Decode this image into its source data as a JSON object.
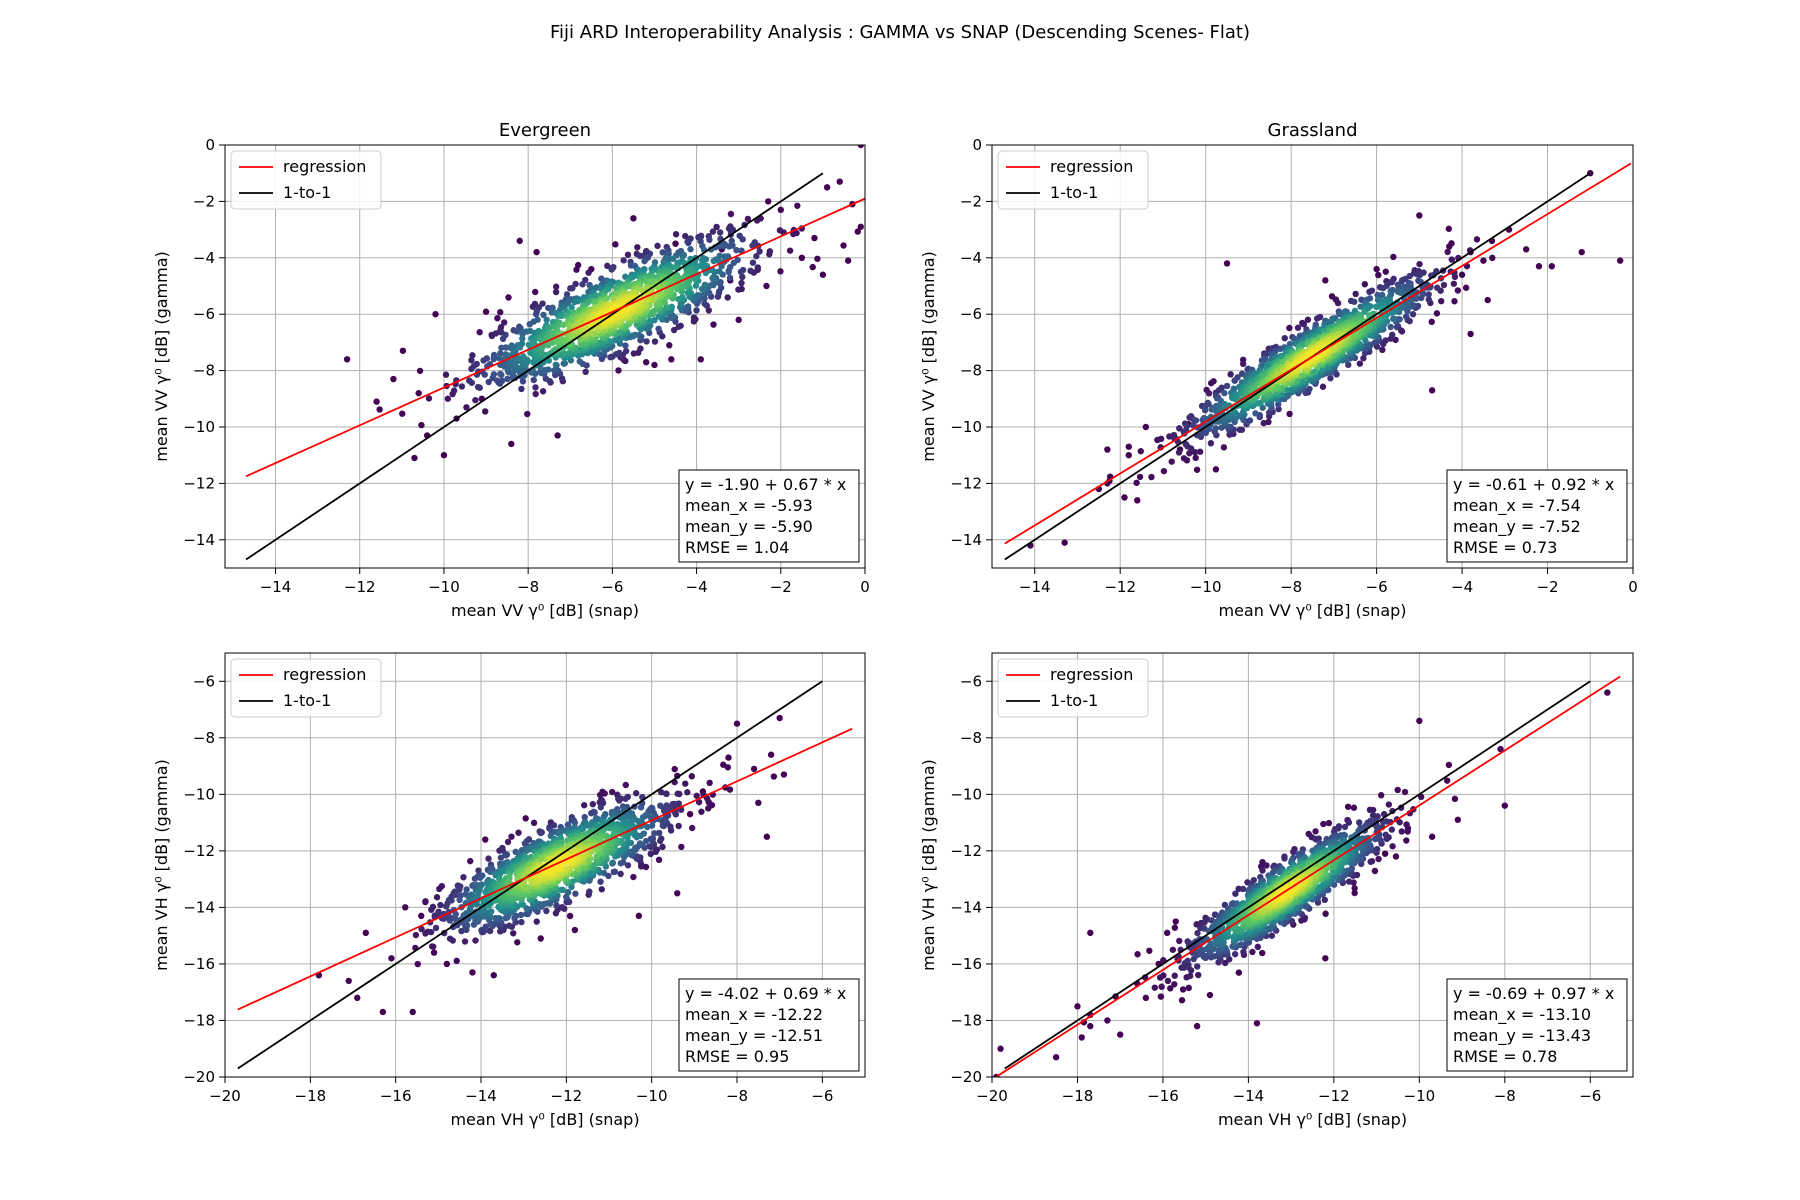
{
  "suptitle": "Fiji ARD Interoperability Analysis : GAMMA vs SNAP (Descending Scenes- Flat)",
  "colors": {
    "regression": "#ff0000",
    "one_to_one": "#000000",
    "grid": "#b0b0b0",
    "density": [
      "#440154",
      "#3b528b",
      "#21918c",
      "#5ec962",
      "#fde725"
    ]
  },
  "chart_data": [
    {
      "type": "scatter",
      "title": "Evergreen",
      "xlabel": "mean VV γ⁰ [dB] (snap)",
      "ylabel": "mean VV γ⁰ [dB] (gamma)",
      "xlim": [
        -15.2,
        0
      ],
      "ylim": [
        -15,
        0
      ],
      "xticks": [
        -14,
        -12,
        -10,
        -8,
        -6,
        -4,
        -2,
        0
      ],
      "yticks": [
        -14,
        -12,
        -10,
        -8,
        -6,
        -4,
        -2,
        0
      ],
      "grid": true,
      "legend": {
        "location": "upper-left",
        "entries": [
          "regression",
          "1-to-1"
        ]
      },
      "regression": {
        "intercept": -1.9,
        "slope": 0.67,
        "x_range": [
          -14.7,
          0
        ]
      },
      "one_to_one": {
        "x_range": [
          -14.7,
          -1.0
        ]
      },
      "cloud": {
        "center": [
          -5.93,
          -5.9
        ],
        "sx": 1.6,
        "slope": 0.67,
        "resid": 0.75
      },
      "stats": [
        "y = -1.90 + 0.67 * x",
        "mean_x = -5.93",
        "mean_y = -5.90",
        "RMSE = 1.04"
      ],
      "outliers": [
        [
          -12.3,
          -7.6
        ],
        [
          -11.2,
          -8.3
        ],
        [
          -11.6,
          -9.1
        ],
        [
          -10.2,
          -6.0
        ],
        [
          -10.7,
          -11.1
        ],
        [
          -10.0,
          -11.0
        ],
        [
          -10.4,
          -10.3
        ],
        [
          -8.4,
          -10.6
        ],
        [
          -7.3,
          -10.3
        ],
        [
          -8.2,
          -3.4
        ],
        [
          -0.1,
          -2.9
        ],
        [
          -0.6,
          -1.3
        ],
        [
          -0.9,
          -1.5
        ],
        [
          -0.4,
          -4.1
        ],
        [
          -2.0,
          -2.3
        ],
        [
          -1.2,
          -3.3
        ],
        [
          -1.5,
          -4.0
        ],
        [
          -3.9,
          -7.6
        ],
        [
          -3.0,
          -6.2
        ],
        [
          -4.6,
          -7.6
        ],
        [
          -5.5,
          -2.6
        ],
        [
          -9.7,
          -9.7
        ],
        [
          -10.6,
          -8.8
        ],
        [
          -9.1,
          -9.0
        ],
        [
          -0.3,
          -2.1
        ],
        [
          -0.1,
          0.0
        ],
        [
          -2.3,
          -2.0
        ],
        [
          -3.2,
          -4.8
        ],
        [
          -1.0,
          -4.6
        ],
        [
          -7.8,
          -3.8
        ],
        [
          -6.5,
          -4.4
        ],
        [
          -3.4,
          -3.7
        ],
        [
          -5.0,
          -7.8
        ],
        [
          -4.5,
          -3.5
        ]
      ]
    },
    {
      "type": "scatter",
      "title": "Grassland",
      "xlabel": "mean VV γ⁰ [dB] (snap)",
      "ylabel": "mean VV γ⁰ [dB] (gamma)",
      "xlim": [
        -15,
        0
      ],
      "ylim": [
        -15,
        0
      ],
      "xticks": [
        -14,
        -12,
        -10,
        -8,
        -6,
        -4,
        -2,
        0
      ],
      "yticks": [
        -14,
        -12,
        -10,
        -8,
        -6,
        -4,
        -2,
        0
      ],
      "grid": true,
      "legend": {
        "location": "upper-left",
        "entries": [
          "regression",
          "1-to-1"
        ]
      },
      "regression": {
        "intercept": -0.61,
        "slope": 0.92,
        "x_range": [
          -14.7,
          -0.05
        ]
      },
      "one_to_one": {
        "x_range": [
          -14.7,
          -1.0
        ]
      },
      "cloud": {
        "center": [
          -7.54,
          -7.52
        ],
        "sx": 1.4,
        "slope": 0.92,
        "resid": 0.55
      },
      "stats": [
        "y = -0.61 + 0.92 * x",
        "mean_x = -7.54",
        "mean_y = -7.52",
        "RMSE = 0.73"
      ],
      "outliers": [
        [
          -14.1,
          -14.2
        ],
        [
          -13.3,
          -14.1
        ],
        [
          -12.3,
          -12.0
        ],
        [
          -12.5,
          -12.2
        ],
        [
          -11.9,
          -12.5
        ],
        [
          -11.6,
          -12.6
        ],
        [
          -12.3,
          -10.8
        ],
        [
          -11.8,
          -11.0
        ],
        [
          -10.6,
          -10.8
        ],
        [
          -11.4,
          -10.0
        ],
        [
          -10.4,
          -9.9
        ],
        [
          -0.3,
          -4.1
        ],
        [
          -1.0,
          -1.0
        ],
        [
          -1.2,
          -3.8
        ],
        [
          -1.9,
          -4.3
        ],
        [
          -2.2,
          -4.3
        ],
        [
          -3.8,
          -6.7
        ],
        [
          -3.4,
          -5.5
        ],
        [
          -3.5,
          -4.1
        ],
        [
          -4.0,
          -4.6
        ],
        [
          -4.3,
          -3.6
        ],
        [
          -2.9,
          -3.0
        ],
        [
          -3.3,
          -3.4
        ],
        [
          -5.0,
          -2.5
        ],
        [
          -4.7,
          -8.7
        ],
        [
          -9.5,
          -4.2
        ],
        [
          -7.2,
          -4.8
        ],
        [
          -6.0,
          -4.4
        ],
        [
          -2.5,
          -3.7
        ],
        [
          -3.8,
          -3.8
        ]
      ]
    },
    {
      "type": "scatter",
      "title": "",
      "xlabel": "mean VH γ⁰ [dB] (snap)",
      "ylabel": "mean VH γ⁰ [dB] (gamma)",
      "xlim": [
        -20,
        -5
      ],
      "ylim": [
        -20,
        -5
      ],
      "xticks": [
        -20,
        -18,
        -16,
        -14,
        -12,
        -10,
        -8,
        -6
      ],
      "yticks": [
        -20,
        -18,
        -16,
        -14,
        -12,
        -10,
        -8,
        -6
      ],
      "grid": true,
      "legend": {
        "location": "upper-left",
        "entries": [
          "regression",
          "1-to-1"
        ]
      },
      "regression": {
        "intercept": -4.02,
        "slope": 0.69,
        "x_range": [
          -19.7,
          -5.3
        ]
      },
      "one_to_one": {
        "x_range": [
          -19.7,
          -6.0
        ]
      },
      "cloud": {
        "center": [
          -12.22,
          -12.51
        ],
        "sx": 1.3,
        "slope": 0.69,
        "resid": 0.7
      },
      "stats": [
        "y = -4.02 + 0.69 * x",
        "mean_x = -12.22",
        "mean_y = -12.51",
        "RMSE = 0.95"
      ],
      "outliers": [
        [
          -17.8,
          -16.4
        ],
        [
          -17.1,
          -16.6
        ],
        [
          -16.9,
          -17.2
        ],
        [
          -16.3,
          -17.7
        ],
        [
          -15.6,
          -17.7
        ],
        [
          -16.7,
          -14.9
        ],
        [
          -16.1,
          -15.8
        ],
        [
          -15.4,
          -14.3
        ],
        [
          -14.8,
          -16.0
        ],
        [
          -15.1,
          -15.6
        ],
        [
          -14.2,
          -16.3
        ],
        [
          -13.7,
          -16.4
        ],
        [
          -12.6,
          -15.1
        ],
        [
          -11.8,
          -14.8
        ],
        [
          -7.2,
          -8.6
        ],
        [
          -7.6,
          -9.1
        ],
        [
          -6.9,
          -9.3
        ],
        [
          -7.0,
          -7.3
        ],
        [
          -8.0,
          -7.5
        ],
        [
          -7.5,
          -10.3
        ],
        [
          -7.3,
          -11.5
        ],
        [
          -8.2,
          -8.7
        ],
        [
          -9.4,
          -13.5
        ],
        [
          -10.3,
          -14.3
        ],
        [
          -8.8,
          -9.9
        ],
        [
          -9.1,
          -10.7
        ],
        [
          -13.9,
          -11.6
        ]
      ]
    },
    {
      "type": "scatter",
      "title": "",
      "xlabel": "mean VH γ⁰ [dB] (snap)",
      "ylabel": "mean VH γ⁰ [dB] (gamma)",
      "xlim": [
        -20,
        -5
      ],
      "ylim": [
        -20,
        -5
      ],
      "xticks": [
        -20,
        -18,
        -16,
        -14,
        -12,
        -10,
        -8,
        -6
      ],
      "yticks": [
        -20,
        -18,
        -16,
        -14,
        -12,
        -10,
        -8,
        -6
      ],
      "grid": true,
      "legend": {
        "location": "upper-left",
        "entries": [
          "regression",
          "1-to-1"
        ]
      },
      "regression": {
        "intercept": -0.69,
        "slope": 0.97,
        "x_range": [
          -19.9,
          -5.3
        ]
      },
      "one_to_one": {
        "x_range": [
          -19.7,
          -6.0
        ]
      },
      "cloud": {
        "center": [
          -13.1,
          -13.43
        ],
        "sx": 1.1,
        "slope": 0.97,
        "resid": 0.55
      },
      "stats": [
        "y = -0.69 + 0.97 * x",
        "mean_x = -13.10",
        "mean_y = -13.43",
        "RMSE = 0.78"
      ],
      "outliers": [
        [
          -19.9,
          -20.0
        ],
        [
          -19.8,
          -19.0
        ],
        [
          -18.5,
          -19.3
        ],
        [
          -18.0,
          -17.5
        ],
        [
          -17.9,
          -18.6
        ],
        [
          -17.7,
          -18.2
        ],
        [
          -17.7,
          -17.8
        ],
        [
          -17.3,
          -18.0
        ],
        [
          -17.0,
          -18.5
        ],
        [
          -17.7,
          -14.9
        ],
        [
          -16.6,
          -16.7
        ],
        [
          -16.4,
          -17.2
        ],
        [
          -16.1,
          -16.0
        ],
        [
          -15.7,
          -14.5
        ],
        [
          -15.9,
          -14.9
        ],
        [
          -15.2,
          -18.2
        ],
        [
          -14.9,
          -17.1
        ],
        [
          -13.8,
          -18.1
        ],
        [
          -12.2,
          -15.8
        ],
        [
          -10.0,
          -7.4
        ],
        [
          -8.0,
          -10.4
        ],
        [
          -8.1,
          -8.4
        ],
        [
          -5.6,
          -6.4
        ],
        [
          -9.1,
          -10.9
        ],
        [
          -9.7,
          -11.5
        ],
        [
          -10.8,
          -12.1
        ],
        [
          -11.0,
          -11.1
        ]
      ]
    }
  ]
}
